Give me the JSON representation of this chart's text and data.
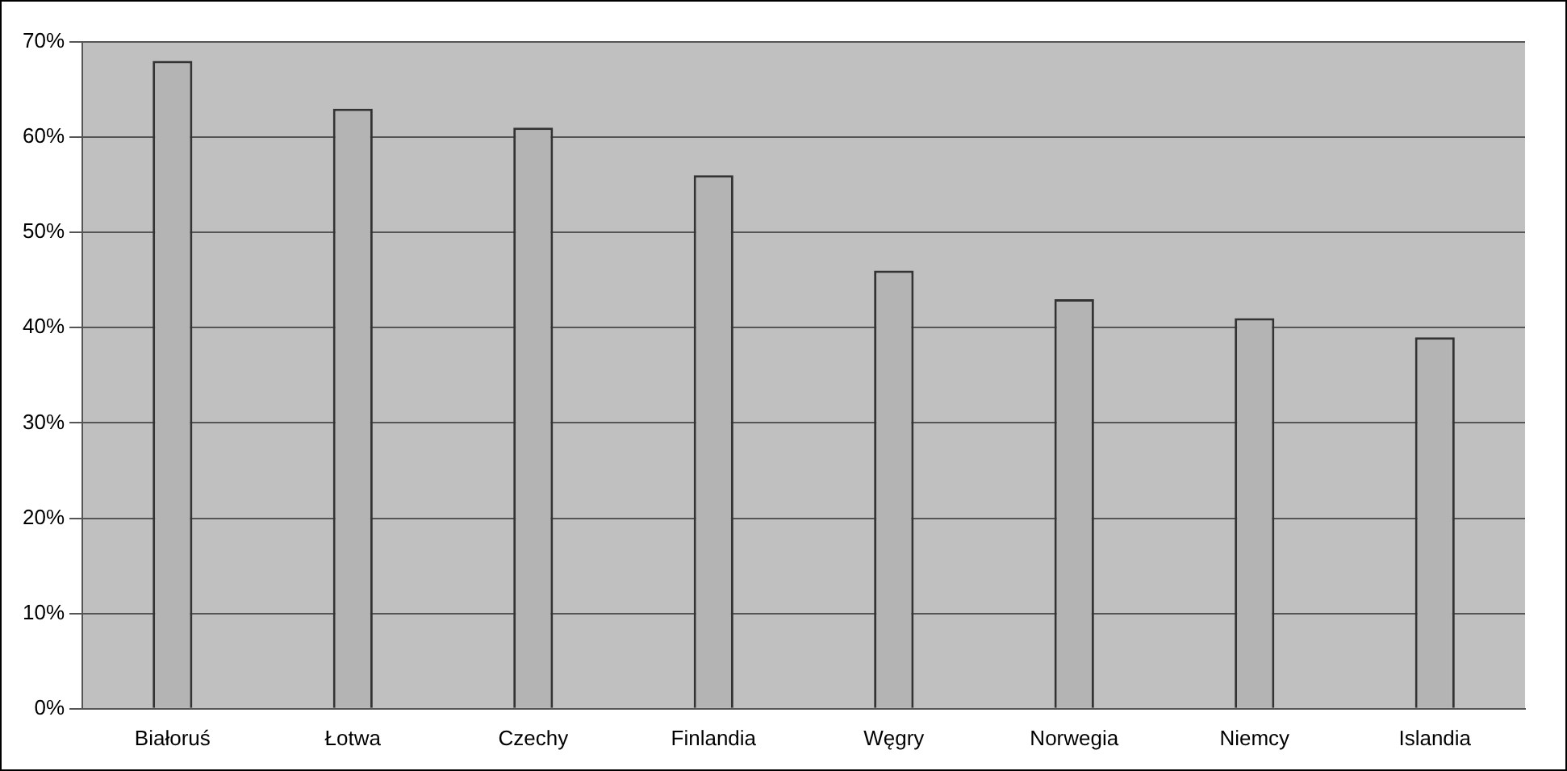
{
  "chart_data": {
    "type": "bar",
    "categories": [
      "Białoruś",
      "Łotwa",
      "Czechy",
      "Finlandia",
      "Węgry",
      "Norwegia",
      "Niemcy",
      "Islandia"
    ],
    "values": [
      68,
      63,
      61,
      56,
      46,
      43,
      41,
      39
    ],
    "color": "#b4b4b4",
    "ylim": [
      0,
      70
    ],
    "yticks": [
      {
        "value": 0,
        "label": "0%"
      },
      {
        "value": 10,
        "label": "10%"
      },
      {
        "value": 20,
        "label": "20%"
      },
      {
        "value": 30,
        "label": "30%"
      },
      {
        "value": 40,
        "label": "40%"
      },
      {
        "value": 50,
        "label": "50%"
      },
      {
        "value": 60,
        "label": "60%"
      },
      {
        "value": 70,
        "label": "70%"
      }
    ],
    "grid": "y",
    "legend": false
  }
}
